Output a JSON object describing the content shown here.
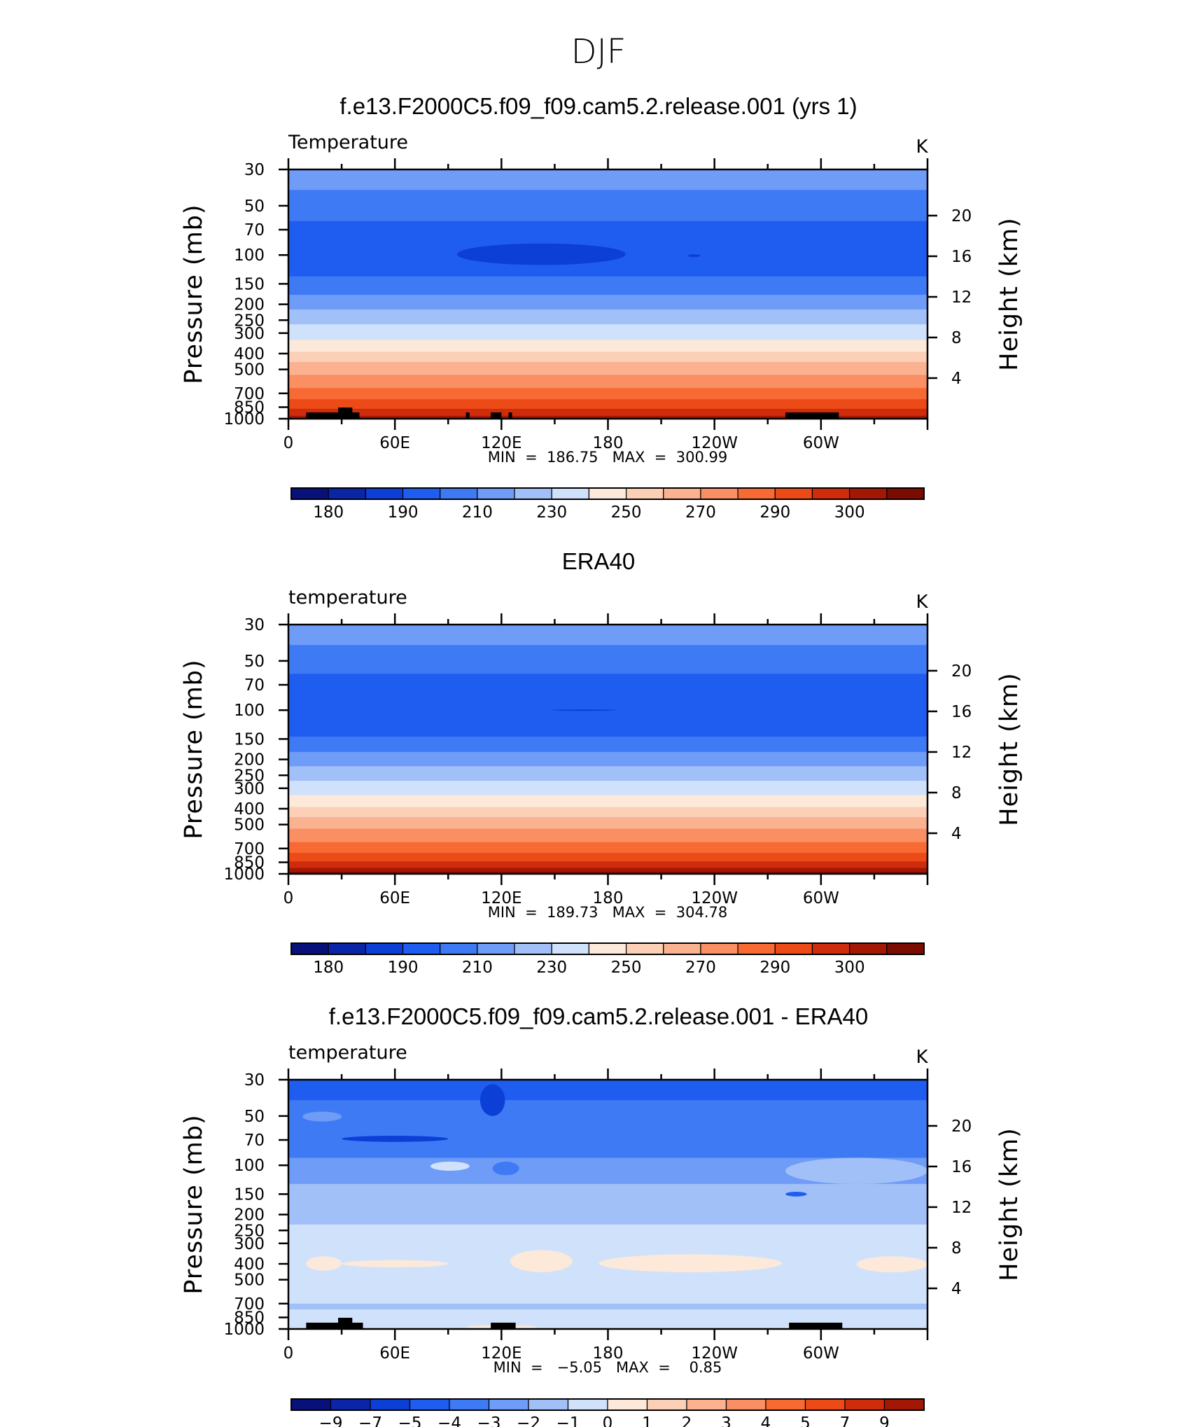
{
  "figure": {
    "title": "DJF"
  },
  "colors": {
    "temp_scale": [
      "#08107a",
      "#0a26a6",
      "#0c3fd6",
      "#1f5cf0",
      "#3f7af5",
      "#6e9cf7",
      "#a2c0f8",
      "#d0e2fb",
      "#fde9d9",
      "#fcd0b7",
      "#fbb291",
      "#f98f62",
      "#f86a34",
      "#ec4a16",
      "#cf2c0c",
      "#a31805",
      "#7a0c02"
    ],
    "diff_scale": [
      "#08107a",
      "#0a26a6",
      "#0c3fd6",
      "#1f5cf0",
      "#3f7af5",
      "#6e9cf7",
      "#a2c0f8",
      "#d0e2fb",
      "#fde9d9",
      "#fcd0b7",
      "#fbb291",
      "#f98f62",
      "#f86a34",
      "#ec4a16",
      "#cf2c0c",
      "#a31805"
    ],
    "topography": "#000000"
  },
  "chart_data": [
    {
      "type": "heatmap",
      "title": "f.e13.F2000C5.f09_f09.cam5.2.release.001 (yrs 1)",
      "left_label": "Temperature",
      "right_label": "K",
      "ylabel": "Pressure (mb)",
      "y2label": "Height (km)",
      "x_ticks": [
        "0",
        "60E",
        "120E",
        "180",
        "120W",
        "60W"
      ],
      "x_range": [
        0,
        360
      ],
      "y_ticks": [
        "30",
        "50",
        "70",
        "100",
        "150",
        "200",
        "250",
        "300",
        "400",
        "500",
        "700",
        "850",
        "1000"
      ],
      "y2_ticks": [
        "20",
        "16",
        "12",
        "8",
        "4"
      ],
      "ylim_mb": [
        1000,
        30
      ],
      "stats_text": "MIN  =  186.75   MAX  =  300.99",
      "min": 186.75,
      "max": 300.99,
      "colorbar_labels": [
        "180",
        "190",
        "210",
        "230",
        "250",
        "270",
        "290",
        "300"
      ],
      "bands": [
        {
          "p": 30,
          "level": 5
        },
        {
          "p": 40,
          "level": 4
        },
        {
          "p": 62,
          "level": 3
        },
        {
          "p": 135,
          "level": 4
        },
        {
          "p": 175,
          "level": 5
        },
        {
          "p": 215,
          "level": 6
        },
        {
          "p": 265,
          "level": 7
        },
        {
          "p": 330,
          "level": 8
        },
        {
          "p": 390,
          "level": 9
        },
        {
          "p": 450,
          "level": 10
        },
        {
          "p": 540,
          "level": 11
        },
        {
          "p": 650,
          "level": 12
        },
        {
          "p": 760,
          "level": 13
        },
        {
          "p": 870,
          "level": 14
        },
        {
          "p": 960,
          "level": 15
        }
      ],
      "features": [
        {
          "lon0": 95,
          "lon1": 190,
          "p0": 85,
          "p1": 115,
          "level": 2
        },
        {
          "lon0": 225,
          "lon1": 232,
          "p0": 99,
          "p1": 103,
          "level": 2
        }
      ],
      "topography": [
        [
          10,
          40
        ],
        [
          28,
          36
        ],
        [
          100,
          102
        ],
        [
          114,
          120
        ],
        [
          124,
          126
        ],
        [
          280,
          310
        ]
      ]
    },
    {
      "type": "heatmap",
      "title": "ERA40",
      "left_label": "temperature",
      "right_label": "K",
      "ylabel": "Pressure (mb)",
      "y2label": "Height (km)",
      "x_ticks": [
        "0",
        "60E",
        "120E",
        "180",
        "120W",
        "60W"
      ],
      "x_range": [
        0,
        360
      ],
      "y_ticks": [
        "30",
        "50",
        "70",
        "100",
        "150",
        "200",
        "250",
        "300",
        "400",
        "500",
        "700",
        "850",
        "1000"
      ],
      "y2_ticks": [
        "20",
        "16",
        "12",
        "8",
        "4"
      ],
      "ylim_mb": [
        1000,
        30
      ],
      "stats_text": "MIN  =  189.73   MAX  =  304.78",
      "min": 189.73,
      "max": 304.78,
      "colorbar_labels": [
        "180",
        "190",
        "210",
        "230",
        "250",
        "270",
        "290",
        "300"
      ],
      "bands": [
        {
          "p": 30,
          "level": 5
        },
        {
          "p": 40,
          "level": 4
        },
        {
          "p": 60,
          "level": 3
        },
        {
          "p": 145,
          "level": 4
        },
        {
          "p": 180,
          "level": 5
        },
        {
          "p": 220,
          "level": 6
        },
        {
          "p": 270,
          "level": 7
        },
        {
          "p": 330,
          "level": 8
        },
        {
          "p": 390,
          "level": 9
        },
        {
          "p": 450,
          "level": 10
        },
        {
          "p": 530,
          "level": 11
        },
        {
          "p": 640,
          "level": 12
        },
        {
          "p": 745,
          "level": 13
        },
        {
          "p": 840,
          "level": 14
        },
        {
          "p": 920,
          "level": 15
        },
        {
          "p": 975,
          "level": 16
        }
      ],
      "features": [
        {
          "lon0": 148,
          "lon1": 185,
          "p0": 99,
          "p1": 101,
          "level": 2
        }
      ],
      "topography": []
    },
    {
      "type": "heatmap",
      "title": "f.e13.F2000C5.f09_f09.cam5.2.release.001 - ERA40",
      "left_label": "temperature",
      "right_label": "K",
      "ylabel": "Pressure (mb)",
      "y2label": "Height (km)",
      "x_ticks": [
        "0",
        "60E",
        "120E",
        "180",
        "120W",
        "60W"
      ],
      "x_range": [
        0,
        360
      ],
      "y_ticks": [
        "30",
        "50",
        "70",
        "100",
        "150",
        "200",
        "250",
        "300",
        "400",
        "500",
        "700",
        "850",
        "1000"
      ],
      "y2_ticks": [
        "20",
        "16",
        "12",
        "8",
        "4"
      ],
      "ylim_mb": [
        1000,
        30
      ],
      "stats_text": "MIN  =   −5.05   MAX  =    0.85",
      "min": -5.05,
      "max": 0.85,
      "colorbar_labels": [
        "−9",
        "−7",
        "−5",
        "−4",
        "−3",
        "−2",
        "−1",
        "0",
        "1",
        "2",
        "3",
        "4",
        "5",
        "7",
        "9"
      ],
      "bands": [
        {
          "p": 30,
          "level": 3
        },
        {
          "p": 40,
          "level": 4
        },
        {
          "p": 90,
          "level": 5
        },
        {
          "p": 130,
          "level": 6
        },
        {
          "p": 230,
          "level": 7
        },
        {
          "p": 700,
          "level": 6
        },
        {
          "p": 760,
          "level": 7
        }
      ],
      "features": [
        {
          "lon0": 8,
          "lon1": 30,
          "p0": 47,
          "p1": 54,
          "level": 5
        },
        {
          "lon0": 30,
          "lon1": 90,
          "p0": 66,
          "p1": 72,
          "level": 2
        },
        {
          "lon0": 108,
          "lon1": 122,
          "p0": 32,
          "p1": 50,
          "level": 2
        },
        {
          "lon0": 162,
          "lon1": 175,
          "p0": 48,
          "p1": 55,
          "level": 4
        },
        {
          "lon0": 80,
          "lon1": 102,
          "p0": 95,
          "p1": 108,
          "level": 7
        },
        {
          "lon0": 115,
          "lon1": 130,
          "p0": 95,
          "p1": 115,
          "level": 4
        },
        {
          "lon0": 280,
          "lon1": 360,
          "p0": 90,
          "p1": 130,
          "level": 6
        },
        {
          "lon0": 280,
          "lon1": 292,
          "p0": 145,
          "p1": 155,
          "level": 3
        },
        {
          "lon0": 10,
          "lon1": 30,
          "p0": 360,
          "p1": 440,
          "level": 8
        },
        {
          "lon0": 30,
          "lon1": 90,
          "p0": 380,
          "p1": 420,
          "level": 8
        },
        {
          "lon0": 125,
          "lon1": 160,
          "p0": 330,
          "p1": 450,
          "level": 8
        },
        {
          "lon0": 175,
          "lon1": 278,
          "p0": 350,
          "p1": 450,
          "level": 8
        },
        {
          "lon0": 320,
          "lon1": 360,
          "p0": 360,
          "p1": 450,
          "level": 8
        },
        {
          "lon0": 100,
          "lon1": 140,
          "p0": 950,
          "p1": 1000,
          "level": 8
        },
        {
          "lon0": 280,
          "lon1": 305,
          "p0": 950,
          "p1": 1000,
          "level": 8
        }
      ],
      "topography": [
        [
          10,
          42
        ],
        [
          28,
          36
        ],
        [
          114,
          128
        ],
        [
          282,
          312
        ]
      ]
    }
  ]
}
